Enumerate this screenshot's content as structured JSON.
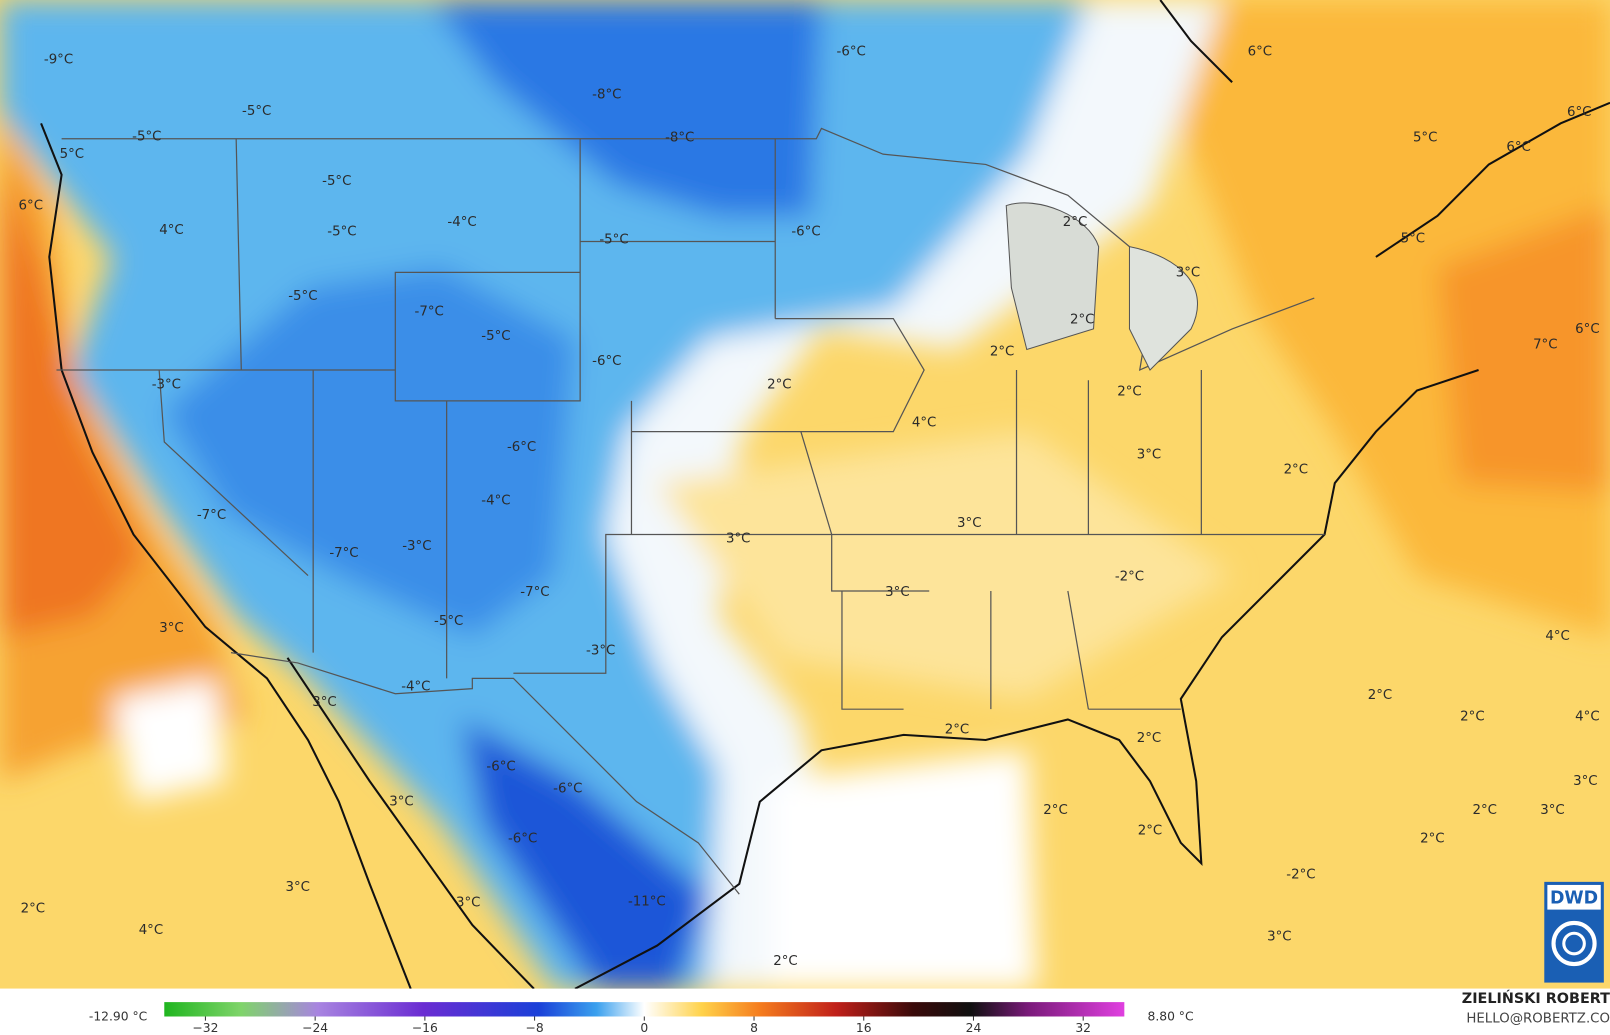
{
  "map_labels": [
    "-9°C",
    "-5°C",
    "-5°C",
    "5°C",
    "6°C",
    "4°C",
    "-5°C",
    "-4°C",
    "-5°C",
    "-5°C",
    "-7°C",
    "-5°C",
    "-8°C",
    "-8°C",
    "-6°C",
    "-5°C",
    "-6°C",
    "-6°C",
    "-3°C",
    "-6°C",
    "-4°C",
    "-7°C",
    "-7°C",
    "-3°C",
    "-7°C",
    "-5°C",
    "-3°C",
    "-4°C",
    "3°C",
    "3°C",
    "3°C",
    "-6°C",
    "-6°C",
    "-6°C",
    "-11°C",
    "3°C",
    "3°C",
    "2°C",
    "4°C",
    "2°C",
    "4°C",
    "3°C",
    "3°C",
    "3°C",
    "2°C",
    "2°C",
    "2°C",
    "3°C",
    "2°C",
    "3°C",
    "2°C",
    "-2°C",
    "2°C",
    "2°C",
    "2°C",
    "2°C",
    "2°C",
    "6°C",
    "5°C",
    "6°C",
    "6°C",
    "5°C",
    "7°C",
    "6°C",
    "4°C",
    "2°C",
    "2°C",
    "4°C",
    "3°C",
    "2°C",
    "3°C",
    "2°C",
    "-2°C",
    "3°C"
  ],
  "colorbar": {
    "min_label": "-12.90 °C",
    "max_label": "8.80 °C",
    "lim": [
      -35,
      35
    ],
    "ticks": [
      {
        "value": -32,
        "label": "−32"
      },
      {
        "value": -24,
        "label": "−24"
      },
      {
        "value": -16,
        "label": "−16"
      },
      {
        "value": -8,
        "label": "−8"
      },
      0,
      8,
      16,
      24,
      32
    ]
  },
  "credit": {
    "name": "ZIELIŃSKI ROBERT",
    "email": "HELLO@ROBERTZ.CO"
  },
  "logo": "DWD"
}
